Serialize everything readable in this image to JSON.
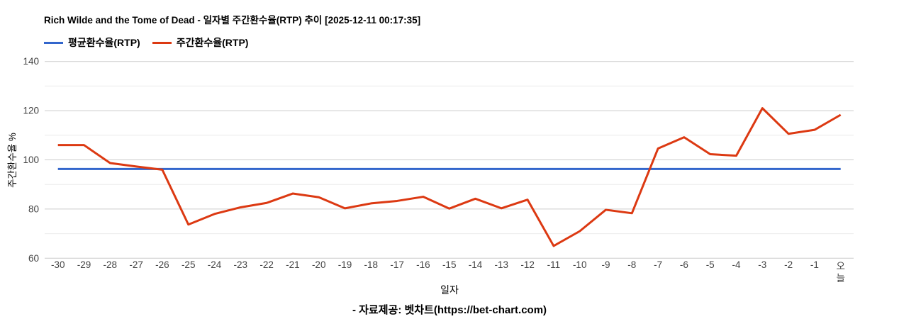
{
  "header": {
    "title": "Rich Wilde and the Tome of Dead - 일자별 주간환수율(RTP) 추이 [2025-12-11 00:17:35]"
  },
  "legend": {
    "items": [
      {
        "label": "평균환수율(RTP)",
        "color": "#3366cc"
      },
      {
        "label": "주간환수율(RTP)",
        "color": "#dc3912"
      }
    ]
  },
  "footer": {
    "source": "- 자료제공: 벳차트(https://bet-chart.com)"
  },
  "chart_data": {
    "type": "line",
    "title": "Rich Wilde and the Tome of Dead - 일자별 주간환수율(RTP) 추이 [2025-12-11 00:17:35]",
    "xlabel": "일자",
    "ylabel": "주간환수율 %",
    "ylim": [
      60,
      140
    ],
    "yticks_major": [
      60,
      80,
      100,
      120,
      140
    ],
    "yticks_minor": [
      70,
      90,
      110,
      130
    ],
    "grid": true,
    "legend_position": "top-left",
    "x_categories": [
      "-30",
      "-29",
      "-28",
      "-27",
      "-26",
      "-25",
      "-24",
      "-23",
      "-22",
      "-21",
      "-20",
      "-19",
      "-18",
      "-17",
      "-16",
      "-15",
      "-14",
      "-13",
      "-12",
      "-11",
      "-10",
      "-9",
      "-8",
      "-7",
      "-6",
      "-5",
      "-4",
      "-3",
      "-2",
      "-1",
      "오늘"
    ],
    "series": [
      {
        "name": "평균환수율(RTP)",
        "color": "#3366cc",
        "values": [
          96.3,
          96.3,
          96.3,
          96.3,
          96.3,
          96.3,
          96.3,
          96.3,
          96.3,
          96.3,
          96.3,
          96.3,
          96.3,
          96.3,
          96.3,
          96.3,
          96.3,
          96.3,
          96.3,
          96.3,
          96.3,
          96.3,
          96.3,
          96.3,
          96.3,
          96.3,
          96.3,
          96.3,
          96.3,
          96.3,
          96.3
        ]
      },
      {
        "name": "주간환수율(RTP)",
        "color": "#dc3912",
        "values": [
          106,
          106,
          98.7,
          97.3,
          96,
          73.7,
          78,
          80.7,
          82.5,
          86.3,
          84.8,
          80.3,
          82.3,
          83.3,
          85,
          80.2,
          84.2,
          80.3,
          83.8,
          65,
          71,
          79.7,
          78.3,
          104.6,
          109.2,
          102.3,
          101.7,
          121,
          110.6,
          112.2,
          118.3
        ]
      }
    ]
  }
}
